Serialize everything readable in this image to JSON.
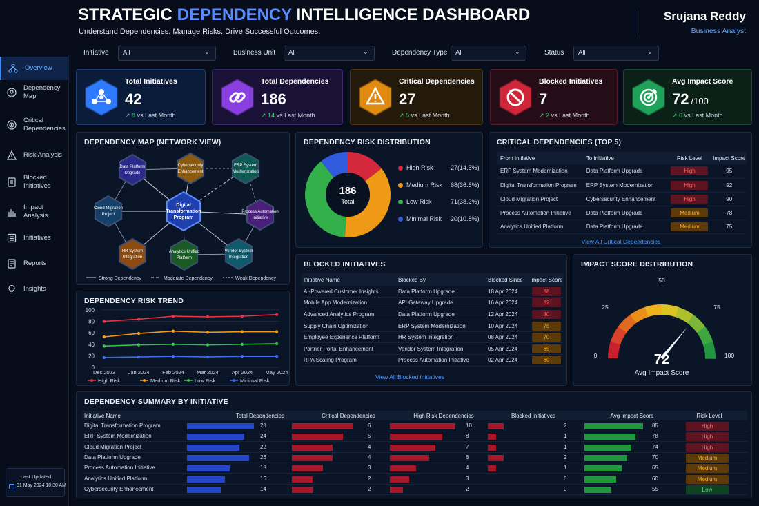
{
  "header": {
    "title_a": "STRATEGIC ",
    "title_b": "DEPENDENCY",
    "title_c": " INTELLIGENCE DASHBOARD",
    "subtitle": "Understand Dependencies. Manage Risks. Drive Successful Outcomes.",
    "user_name": "Srujana Reddy",
    "user_role": "Business Analyst"
  },
  "filters": [
    {
      "label": "Initiative",
      "value": "All"
    },
    {
      "label": "Business Unit",
      "value": "All"
    },
    {
      "label": "Dependency Type",
      "value": "All"
    },
    {
      "label": "Status",
      "value": "All"
    }
  ],
  "sidebar": {
    "items": [
      {
        "label": "Overview",
        "icon": "network-icon"
      },
      {
        "label": "Dependency Map",
        "icon": "map-icon"
      },
      {
        "label": "Critical Dependencies",
        "icon": "target-icon"
      },
      {
        "label": "Risk Analysis",
        "icon": "warning-icon"
      },
      {
        "label": "Blocked Initiatives",
        "icon": "document-icon"
      },
      {
        "label": "Impact Analysis",
        "icon": "chart-icon"
      },
      {
        "label": "Initiatives",
        "icon": "list-icon"
      },
      {
        "label": "Reports",
        "icon": "report-icon"
      },
      {
        "label": "Insights",
        "icon": "bulb-icon"
      }
    ],
    "last_updated_label": "Last Updated",
    "last_updated_value": "01 May 2024 10:30 AM"
  },
  "kpis": [
    {
      "title": "Total Initiatives",
      "value": "42",
      "unit": "",
      "delta": "8",
      "delta_text": "vs Last Month",
      "color": "#2e7bff",
      "icon": "network-icon"
    },
    {
      "title": "Total Dependencies",
      "value": "186",
      "unit": "",
      "delta": "14",
      "delta_text": "vs Last Month",
      "color": "#8a3fe0",
      "icon": "link-icon"
    },
    {
      "title": "Critical Dependencies",
      "value": "27",
      "unit": "",
      "delta": "5",
      "delta_text": "vs Last Month",
      "color": "#e08a10",
      "icon": "warning-icon"
    },
    {
      "title": "Blocked Initiatives",
      "value": "7",
      "unit": "",
      "delta": "2",
      "delta_text": "vs Last Month",
      "color": "#d0263a",
      "icon": "blocked-icon"
    },
    {
      "title": "Avg Impact Score",
      "value": "72",
      "unit": "/100",
      "delta": "6",
      "delta_text": "vs Last Month",
      "color": "#1fa35a",
      "icon": "target-icon"
    }
  ],
  "map": {
    "title": "DEPENDENCY MAP (NETWORK VIEW)",
    "center": "Digital Transformation Program",
    "nodes": [
      {
        "label": "Data Platform Upgrade",
        "color": "#2a2a8a"
      },
      {
        "label": "Cybersecurity Enhancement",
        "color": "#8a5a10"
      },
      {
        "label": "ERP System Modernization",
        "color": "#0f5a55"
      },
      {
        "label": "Process Automation Initiative",
        "color": "#4a1f7a"
      },
      {
        "label": "Vendor System Integration",
        "color": "#0f5a6a"
      },
      {
        "label": "Analytics Unified Platform",
        "color": "#1a5a25"
      },
      {
        "label": "HR System Integration",
        "color": "#8a4a10"
      },
      {
        "label": "Cloud Migration Project",
        "color": "#15406a"
      }
    ],
    "legend": [
      "Strong Dependency",
      "Moderate Dependency",
      "Weak Dependency"
    ]
  },
  "risk_dist": {
    "title": "DEPENDENCY RISK DISTRIBUTION",
    "total": "186",
    "total_label": "Total",
    "items": [
      {
        "label": "High Risk",
        "value": 27,
        "pct": "(14.5%)",
        "color": "#d4283c"
      },
      {
        "label": "Medium Risk",
        "value": 68,
        "pct": "(36.6%)",
        "color": "#ef9a16"
      },
      {
        "label": "Low Risk",
        "value": 71,
        "pct": "(38.2%)",
        "color": "#33b04a"
      },
      {
        "label": "Minimal Risk",
        "value": 20,
        "pct": "(10.8%)",
        "color": "#2f5bdc"
      }
    ]
  },
  "critical": {
    "title": "CRITICAL DEPENDENCIES (TOP 5)",
    "headers": [
      "From Initiative",
      "To Initiative",
      "Risk Level",
      "Impact Score"
    ],
    "rows": [
      [
        "ERP System Modernization",
        "Data Platform Upgrade",
        "High",
        "95"
      ],
      [
        "Digital Transformation Program",
        "ERP System Modernization",
        "High",
        "92"
      ],
      [
        "Cloud Migration Project",
        "Cybersecurity Enhancement",
        "High",
        "90"
      ],
      [
        "Process Automation Initiative",
        "Data Platform Upgrade",
        "Medium",
        "78"
      ],
      [
        "Analytics Unified Platform",
        "Data Platform Upgrade",
        "Medium",
        "75"
      ]
    ],
    "link": "View All Critical Dependencies"
  },
  "trend": {
    "title": "DEPENDENCY RISK TREND"
  },
  "chart_data": {
    "type": "line",
    "categories": [
      "Dec 2023",
      "Jan 2024",
      "Feb 2024",
      "Mar 2024",
      "Apr 2024",
      "May 2024"
    ],
    "ylim": [
      0,
      100
    ],
    "yticks": [
      0,
      20,
      40,
      60,
      80,
      100
    ],
    "series": [
      {
        "name": "High Risk",
        "color": "#e8333f",
        "values": [
          80,
          84,
          89,
          88,
          89,
          92
        ]
      },
      {
        "name": "Medium Risk",
        "color": "#f39c12",
        "values": [
          53,
          59,
          63,
          61,
          62,
          62
        ]
      },
      {
        "name": "Low Risk",
        "color": "#36c24a",
        "values": [
          37,
          39,
          40,
          39,
          40,
          41
        ]
      },
      {
        "name": "Minimal Risk",
        "color": "#3a6cf0",
        "values": [
          17,
          18,
          19,
          18,
          19,
          19
        ]
      }
    ]
  },
  "blocked": {
    "title": "BLOCKED INITIATIVES",
    "headers": [
      "Initiative Name",
      "Blocked By",
      "Blocked Since",
      "Impact Score"
    ],
    "rows": [
      [
        "AI-Powered Customer Insights",
        "Data Platform Upgrade",
        "18 Apr 2024",
        "88"
      ],
      [
        "Mobile App Modernization",
        "API Gateway Upgrade",
        "16 Apr 2024",
        "82"
      ],
      [
        "Advanced Analytics Program",
        "Data Platform Upgrade",
        "12 Apr 2024",
        "80"
      ],
      [
        "Supply Chain Optimization",
        "ERP System Modernization",
        "10 Apr 2024",
        "75"
      ],
      [
        "Employee Experience Platform",
        "HR System Integration",
        "08 Apr 2024",
        "70"
      ],
      [
        "Partner Portal Enhancement",
        "Vendor System Integration",
        "05 Apr 2024",
        "65"
      ],
      [
        "RPA Scaling Program",
        "Process Automation Initiative",
        "02 Apr 2024",
        "60"
      ]
    ],
    "link": "View All Blocked Initiatives"
  },
  "gauge": {
    "title": "IMPACT SCORE DISTRIBUTION",
    "value": 72,
    "label": "Avg Impact Score",
    "ticks": [
      "0",
      "25",
      "50",
      "75",
      "100"
    ]
  },
  "summary": {
    "title": "DEPENDENCY SUMMARY BY INITIATIVE",
    "headers": [
      "Initiative Name",
      "Total Dependencies",
      "Critical Dependencies",
      "High Risk Dependencies",
      "Blocked Initiatives",
      "Avg Impact Score",
      "Risk Level"
    ],
    "rows": [
      [
        "Digital Transformation Program",
        28,
        6,
        10,
        2,
        85,
        "High"
      ],
      [
        "ERP System Modernization",
        24,
        5,
        8,
        1,
        78,
        "High"
      ],
      [
        "Cloud Migration Project",
        22,
        4,
        7,
        1,
        74,
        "High"
      ],
      [
        "Data Platform Upgrade",
        26,
        4,
        6,
        2,
        70,
        "Medium"
      ],
      [
        "Process Automation Initiative",
        18,
        3,
        4,
        1,
        65,
        "Medium"
      ],
      [
        "Analytics Unified Platform",
        16,
        2,
        3,
        0,
        60,
        "Medium"
      ],
      [
        "Cybersecurity Enhancement",
        14,
        2,
        2,
        0,
        55,
        "Low"
      ]
    ]
  }
}
